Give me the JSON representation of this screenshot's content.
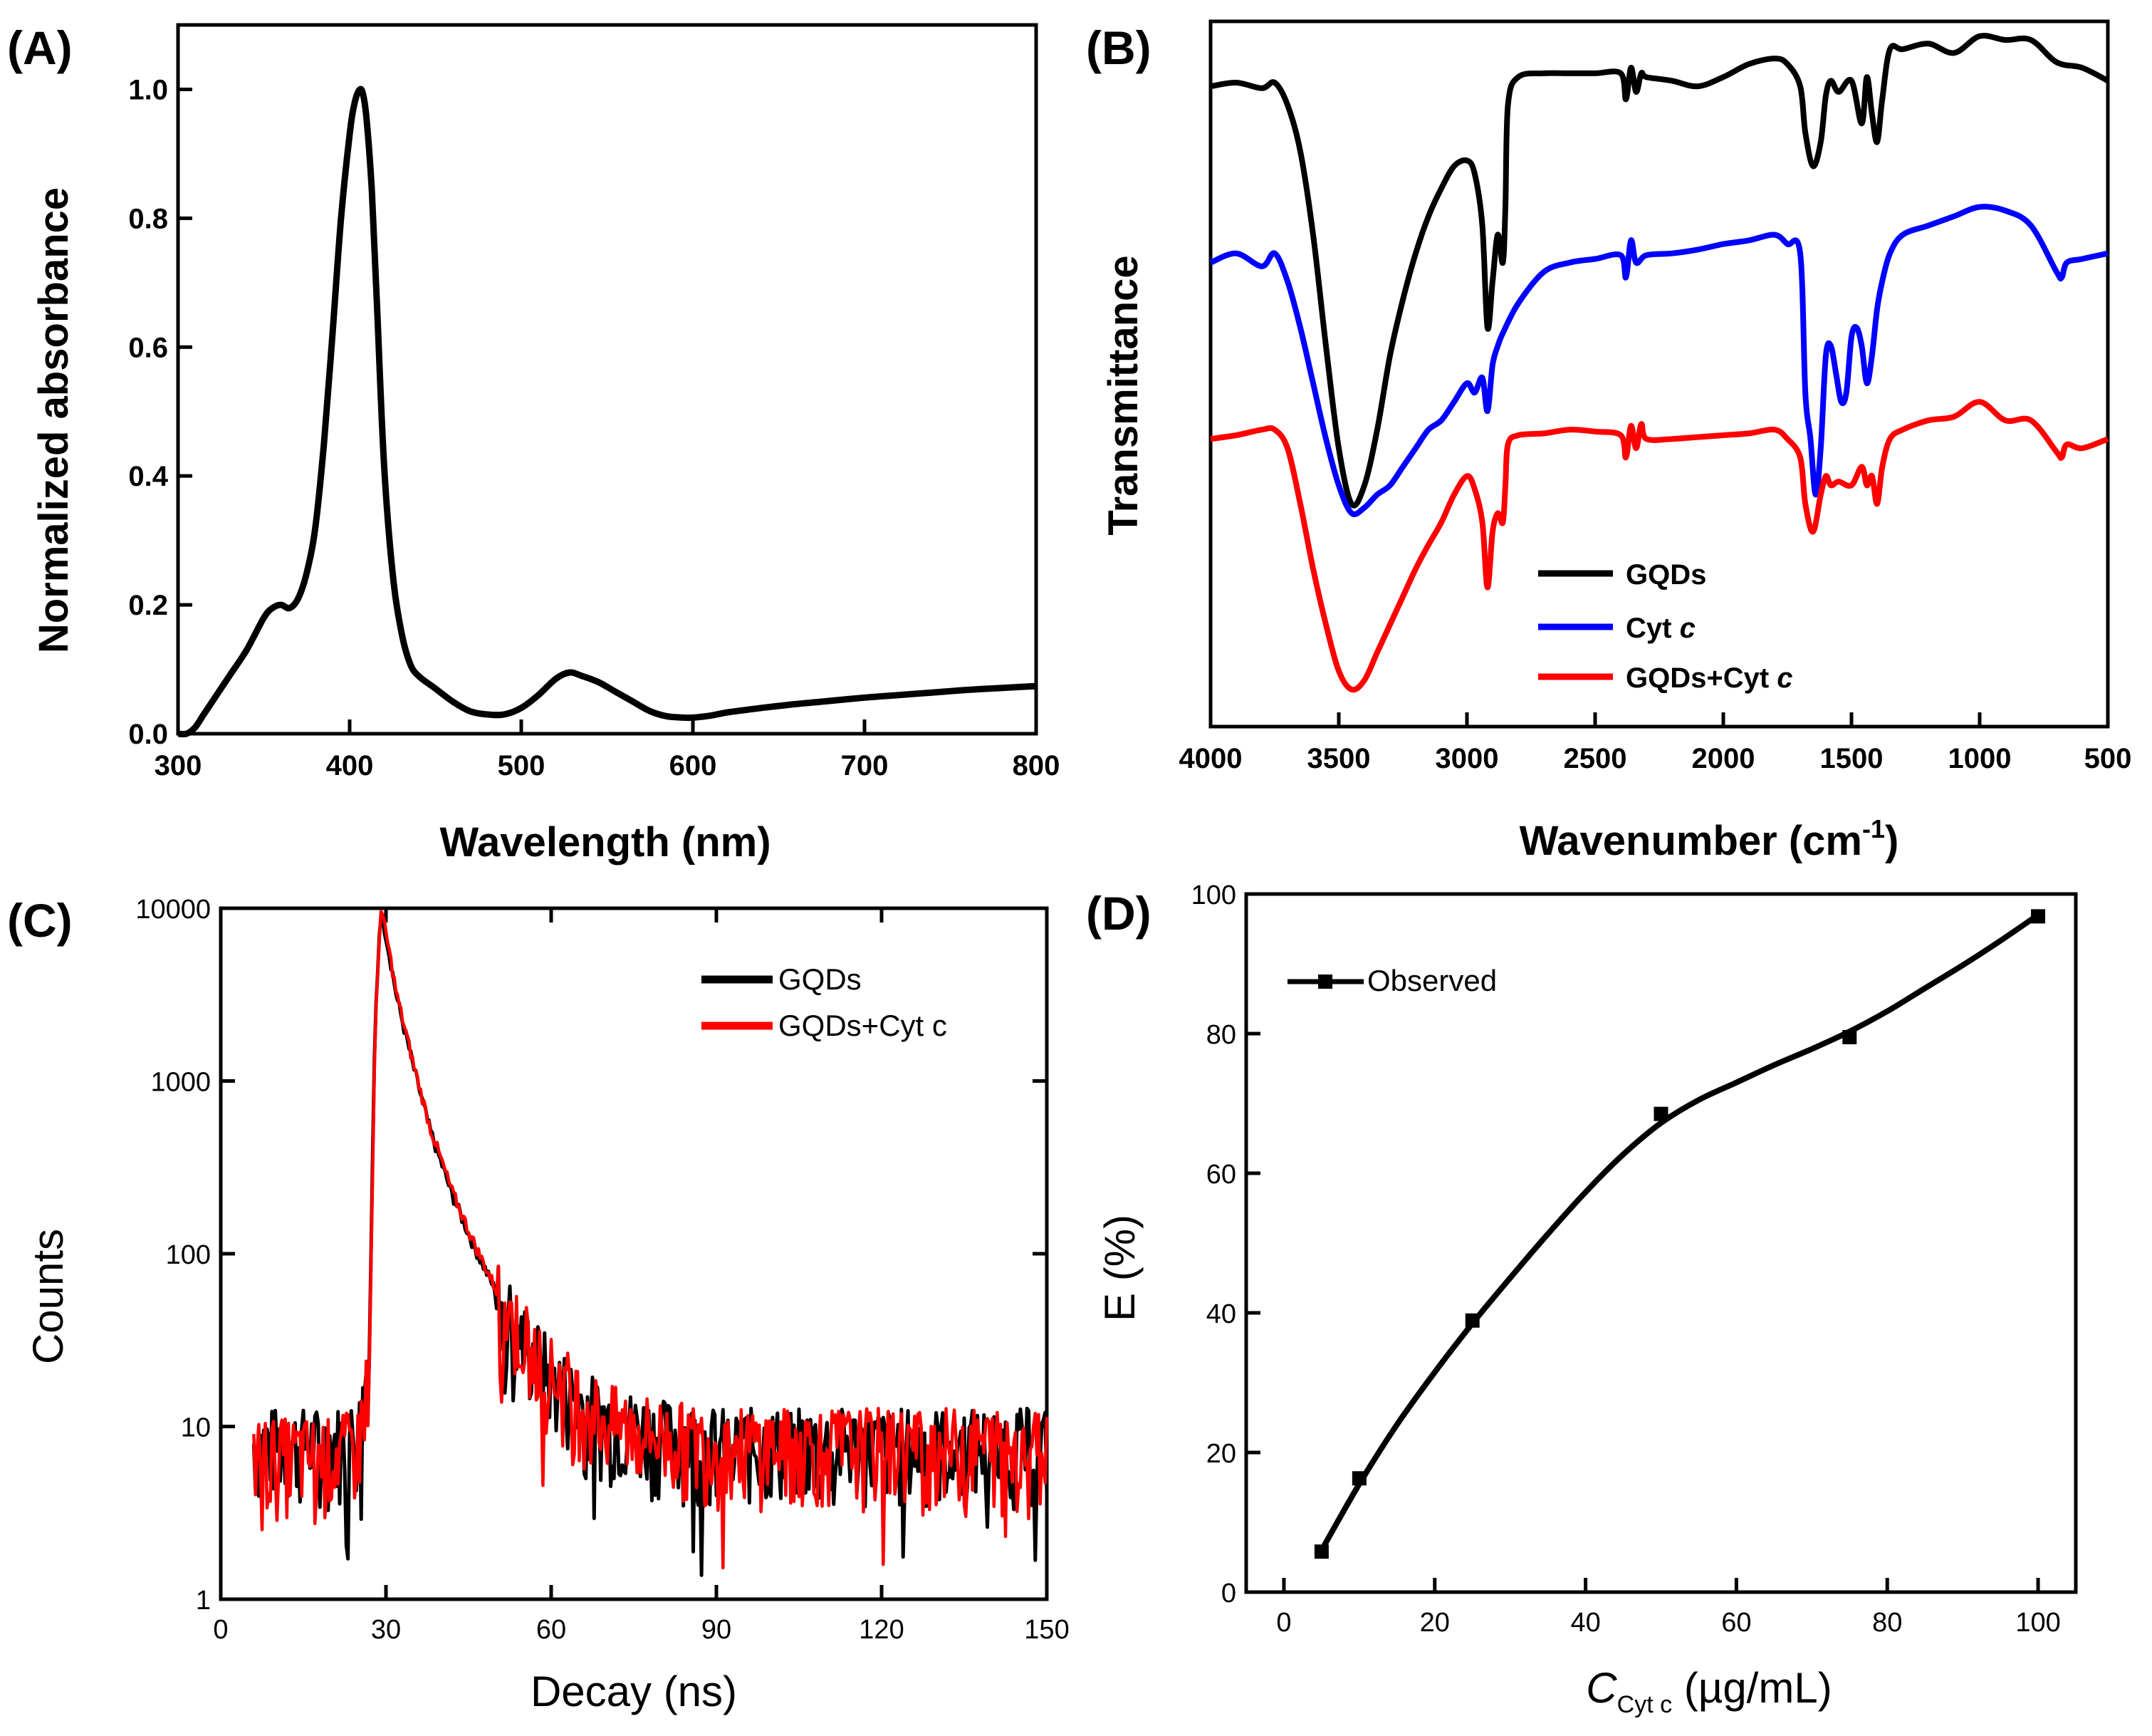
{
  "figure": {
    "panels": [
      {
        "id": "A",
        "label": "(A)",
        "chart_data": {
          "type": "line",
          "title": "",
          "xlabel": "Wavelength (nm)",
          "ylabel": "Normalized absorbance",
          "xlim": [
            300,
            800
          ],
          "ylim": [
            0,
            1.1
          ],
          "xticks": [
            300,
            400,
            500,
            600,
            700,
            800
          ],
          "yticks": [
            0.0,
            0.2,
            0.4,
            0.6,
            0.8,
            1.0
          ],
          "ytick_labels": [
            "0.0",
            "0.2",
            "0.4",
            "0.6",
            "0.8",
            "1.0"
          ],
          "series": [
            {
              "name": "Absorbance",
              "color": "#000000",
              "x": [
                300,
                305,
                310,
                315,
                320,
                330,
                340,
                350,
                355,
                360,
                365,
                370,
                375,
                380,
                385,
                390,
                395,
                400,
                403,
                406,
                408,
                410,
                413,
                416,
                420,
                425,
                430,
                435,
                440,
                450,
                460,
                470,
                480,
                490,
                500,
                510,
                520,
                528,
                535,
                545,
                555,
                565,
                575,
                585,
                595,
                600,
                610,
                620,
                640,
                660,
                680,
                700,
                720,
                740,
                760,
                780,
                800
              ],
              "y": [
                0.0,
                0.0,
                0.01,
                0.03,
                0.05,
                0.09,
                0.13,
                0.18,
                0.195,
                0.2,
                0.195,
                0.21,
                0.25,
                0.32,
                0.45,
                0.62,
                0.8,
                0.93,
                0.98,
                1.0,
                0.99,
                0.95,
                0.84,
                0.66,
                0.42,
                0.25,
                0.16,
                0.11,
                0.09,
                0.07,
                0.05,
                0.035,
                0.03,
                0.03,
                0.04,
                0.06,
                0.085,
                0.095,
                0.09,
                0.08,
                0.065,
                0.05,
                0.035,
                0.027,
                0.025,
                0.025,
                0.028,
                0.033,
                0.04,
                0.046,
                0.051,
                0.056,
                0.06,
                0.064,
                0.068,
                0.071,
                0.074
              ]
            }
          ]
        }
      },
      {
        "id": "B",
        "label": "(B)",
        "chart_data": {
          "type": "line",
          "title": "",
          "xlabel": "Wavenumber (cm",
          "xlabel_sup": "-1",
          "xlabel_end": ")",
          "ylabel": "Transmittance",
          "xlim": [
            4000,
            500
          ],
          "ylim": [
            -2.6,
            1.2
          ],
          "xticks": [
            4000,
            3500,
            3000,
            2500,
            2000,
            1500,
            1000,
            500
          ],
          "yticks": [],
          "legend": [
            {
              "label": "GQDs",
              "italic": "",
              "color": "#000000"
            },
            {
              "label": "Cyt ",
              "italic": "c",
              "color": "#0000ff"
            },
            {
              "label": "GQDs+Cyt ",
              "italic": "c",
              "color": "#ff0000"
            }
          ],
          "series": [
            {
              "name": "GQDs",
              "color": "#000000",
              "x": [
                4000,
                3900,
                3800,
                3750,
                3700,
                3650,
                3600,
                3550,
                3500,
                3450,
                3400,
                3350,
                3300,
                3250,
                3200,
                3150,
                3100,
                3050,
                3000,
                2970,
                2940,
                2920,
                2900,
                2880,
                2860,
                2850,
                2840,
                2800,
                2700,
                2600,
                2500,
                2400,
                2380,
                2360,
                2340,
                2320,
                2300,
                2200,
                2100,
                2000,
                1900,
                1800,
                1750,
                1700,
                1680,
                1650,
                1620,
                1600,
                1580,
                1550,
                1500,
                1460,
                1440,
                1420,
                1400,
                1380,
                1350,
                1300,
                1200,
                1100,
                1000,
                900,
                800,
                700,
                600,
                500
              ],
              "y": [
                0.85,
                0.87,
                0.84,
                0.87,
                0.75,
                0.5,
                0.05,
                -0.55,
                -1.1,
                -1.4,
                -1.3,
                -1.0,
                -0.6,
                -0.3,
                -0.05,
                0.15,
                0.3,
                0.42,
                0.45,
                0.38,
                0.1,
                -0.45,
                -0.2,
                0.05,
                -0.1,
                0.2,
                0.75,
                0.9,
                0.92,
                0.92,
                0.92,
                0.92,
                0.78,
                0.95,
                0.82,
                0.92,
                0.9,
                0.88,
                0.85,
                0.9,
                0.97,
                1.0,
                0.97,
                0.85,
                0.6,
                0.42,
                0.55,
                0.8,
                0.88,
                0.82,
                0.88,
                0.65,
                0.9,
                0.7,
                0.55,
                0.78,
                1.05,
                1.05,
                1.08,
                1.03,
                1.12,
                1.1,
                1.1,
                0.98,
                0.95,
                0.88
              ]
            },
            {
              "name": "Cyt c",
              "color": "#0000ff",
              "x": [
                4000,
                3900,
                3800,
                3750,
                3700,
                3650,
                3600,
                3550,
                3500,
                3450,
                3400,
                3350,
                3300,
                3250,
                3200,
                3150,
                3100,
                3050,
                3000,
                2970,
                2940,
                2920,
                2900,
                2880,
                2860,
                2800,
                2700,
                2600,
                2500,
                2400,
                2380,
                2360,
                2340,
                2300,
                2200,
                2100,
                2000,
                1900,
                1800,
                1750,
                1700,
                1680,
                1660,
                1640,
                1620,
                1600,
                1580,
                1560,
                1540,
                1520,
                1500,
                1480,
                1460,
                1440,
                1420,
                1400,
                1380,
                1350,
                1300,
                1200,
                1100,
                1000,
                900,
                800,
                700,
                680,
                660,
                600,
                500
              ],
              "y": [
                -0.1,
                -0.05,
                -0.12,
                -0.05,
                -0.2,
                -0.45,
                -0.75,
                -1.05,
                -1.3,
                -1.45,
                -1.42,
                -1.35,
                -1.3,
                -1.2,
                -1.1,
                -1.0,
                -0.95,
                -0.85,
                -0.75,
                -0.8,
                -0.72,
                -0.9,
                -0.65,
                -0.55,
                -0.48,
                -0.32,
                -0.15,
                -0.1,
                -0.08,
                -0.06,
                -0.18,
                0.02,
                -0.1,
                -0.06,
                -0.05,
                -0.03,
                0.0,
                0.02,
                0.05,
                0.0,
                -0.05,
                -0.8,
                -1.05,
                -1.35,
                -1.1,
                -0.6,
                -0.55,
                -0.7,
                -0.85,
                -0.8,
                -0.5,
                -0.45,
                -0.55,
                -0.75,
                -0.6,
                -0.35,
                -0.2,
                -0.05,
                0.05,
                0.1,
                0.15,
                0.2,
                0.18,
                0.1,
                -0.15,
                -0.18,
                -0.1,
                -0.08,
                -0.05
              ]
            },
            {
              "name": "GQDs+Cyt c",
              "color": "#ff0000",
              "x": [
                4000,
                3900,
                3800,
                3750,
                3700,
                3650,
                3600,
                3550,
                3500,
                3450,
                3400,
                3350,
                3300,
                3250,
                3200,
                3150,
                3100,
                3050,
                3000,
                2970,
                2940,
                2920,
                2900,
                2880,
                2860,
                2850,
                2840,
                2800,
                2700,
                2600,
                2500,
                2400,
                2380,
                2360,
                2340,
                2320,
                2300,
                2200,
                2100,
                2000,
                1900,
                1800,
                1750,
                1700,
                1680,
                1650,
                1620,
                1600,
                1580,
                1550,
                1500,
                1460,
                1440,
                1420,
                1400,
                1380,
                1350,
                1300,
                1200,
                1100,
                1000,
                900,
                800,
                700,
                680,
                660,
                600,
                500
              ],
              "y": [
                -1.05,
                -1.03,
                -1.0,
                -1.0,
                -1.1,
                -1.4,
                -1.75,
                -2.05,
                -2.3,
                -2.4,
                -2.35,
                -2.2,
                -2.05,
                -1.9,
                -1.75,
                -1.62,
                -1.5,
                -1.35,
                -1.25,
                -1.32,
                -1.5,
                -1.85,
                -1.55,
                -1.45,
                -1.5,
                -1.3,
                -1.08,
                -1.03,
                -1.02,
                -1.0,
                -1.01,
                -1.03,
                -1.15,
                -0.98,
                -1.1,
                -0.97,
                -1.05,
                -1.05,
                -1.04,
                -1.03,
                -1.02,
                -1.0,
                -1.05,
                -1.15,
                -1.4,
                -1.55,
                -1.35,
                -1.25,
                -1.3,
                -1.28,
                -1.3,
                -1.2,
                -1.3,
                -1.25,
                -1.4,
                -1.2,
                -1.05,
                -1.0,
                -0.95,
                -0.93,
                -0.85,
                -0.95,
                -0.95,
                -1.12,
                -1.15,
                -1.08,
                -1.1,
                -1.05
              ]
            }
          ]
        }
      },
      {
        "id": "C",
        "label": "(C)",
        "chart_data": {
          "type": "line",
          "title": "",
          "xlabel": "Decay (ns)",
          "ylabel": "Counts",
          "xscale": "linear",
          "yscale": "log",
          "xlim": [
            0,
            150
          ],
          "ylim": [
            1,
            10000
          ],
          "xticks": [
            0,
            30,
            60,
            90,
            120,
            150
          ],
          "yticks": [
            1,
            10,
            100,
            1000,
            10000
          ],
          "legend": [
            {
              "label": "GQDs",
              "color": "#000000"
            },
            {
              "label": "GQDs+Cyt c",
              "color": "#ff0000"
            }
          ],
          "series": [
            {
              "name": "GQDs",
              "color": "#000000",
              "x": [
                6,
                10,
                15,
                20,
                25,
                27,
                28,
                29,
                30,
                32,
                35,
                38,
                42,
                46,
                50,
                55,
                60,
                65,
                70,
                80,
                90,
                100,
                110,
                120,
                130,
                140,
                150
              ],
              "y": [
                8,
                8,
                8,
                8,
                9,
                30,
                2000,
                9800,
                7000,
                3000,
                1200,
                520,
                220,
                110,
                60,
                32,
                20,
                14,
                11,
                9,
                8,
                8,
                8,
                8,
                8,
                8,
                8
              ]
            },
            {
              "name": "GQDs+Cyt c",
              "color": "#ff0000",
              "x": [
                6,
                10,
                15,
                20,
                25,
                27,
                28,
                29,
                30,
                32,
                35,
                38,
                42,
                46,
                50,
                55,
                60,
                65,
                70,
                80,
                90,
                100,
                110,
                120,
                130,
                140,
                150
              ],
              "y": [
                7,
                7,
                7,
                7,
                8,
                25,
                1800,
                10000,
                7200,
                3100,
                1250,
                540,
                230,
                115,
                62,
                33,
                21,
                15,
                11,
                9,
                8,
                8,
                8,
                8,
                8,
                8,
                8
              ]
            }
          ]
        }
      },
      {
        "id": "D",
        "label": "(D)",
        "chart_data": {
          "type": "scatter",
          "title": "",
          "xlabel_main": "C",
          "xlabel_sub": "Cyt c",
          "xlabel_units": " (µg/mL)",
          "ylabel": "E (%)",
          "xlim": [
            -5,
            105
          ],
          "ylim": [
            0,
            100
          ],
          "xticks": [
            0,
            20,
            40,
            60,
            80,
            100
          ],
          "yticks": [
            0,
            20,
            40,
            60,
            80,
            100
          ],
          "legend": [
            {
              "label": "Observed",
              "color": "#000000"
            }
          ],
          "series": [
            {
              "name": "Observed",
              "color": "#000000",
              "x": [
                5,
                10,
                25,
                50,
                75,
                100
              ],
              "y": [
                5.8,
                16.3,
                38.9,
                68.5,
                79.5,
                96.8
              ]
            }
          ],
          "fit_curve": {
            "x": [
              5,
              10,
              15,
              20,
              25,
              30,
              35,
              40,
              45,
              50,
              55,
              60,
              65,
              70,
              75,
              80,
              85,
              90,
              95,
              100
            ],
            "y": [
              6,
              15.5,
              24,
              31.5,
              38.5,
              45,
              51.3,
              57.3,
              62.7,
              67.2,
              70.5,
              73,
              75.5,
              77.8,
              80.3,
              83.2,
              86.5,
              89.8,
              93.3,
              97
            ]
          }
        }
      }
    ]
  }
}
